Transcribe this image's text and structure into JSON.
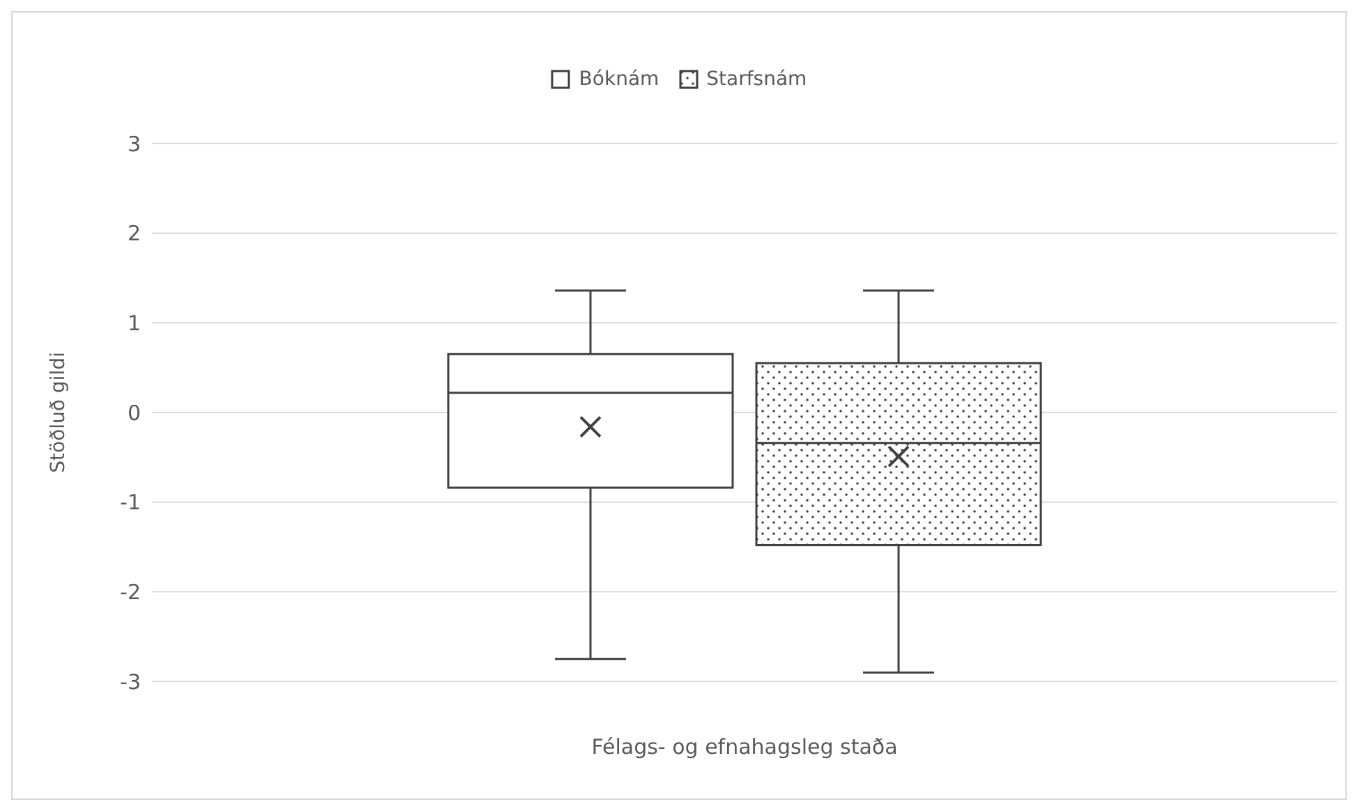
{
  "chart_data": {
    "type": "box",
    "xlabel": "Félags- og efnahagsleg staða",
    "ylabel": "Stöðluð gildi",
    "categories": [
      null
    ],
    "series": [
      {
        "name": "Bóknám",
        "color": "#ffffff",
        "boxes": [
          {
            "low": -2.75,
            "q1": -0.84,
            "median": 0.22,
            "q3": 0.65,
            "high": 1.36,
            "mean": -0.16
          }
        ]
      },
      {
        "name": "Starfsnám",
        "color": "#404040",
        "boxes": [
          {
            "low": -2.9,
            "q1": -1.48,
            "median": -0.34,
            "q3": 0.55,
            "high": 1.36,
            "mean": -0.49
          }
        ]
      }
    ],
    "ylim": [
      -3,
      3
    ],
    "yticks": [
      -3,
      -2,
      -1,
      0,
      1,
      2,
      3
    ],
    "grid": "y",
    "legend": "top",
    "marker": "cross",
    "tick_labels": "y"
  }
}
